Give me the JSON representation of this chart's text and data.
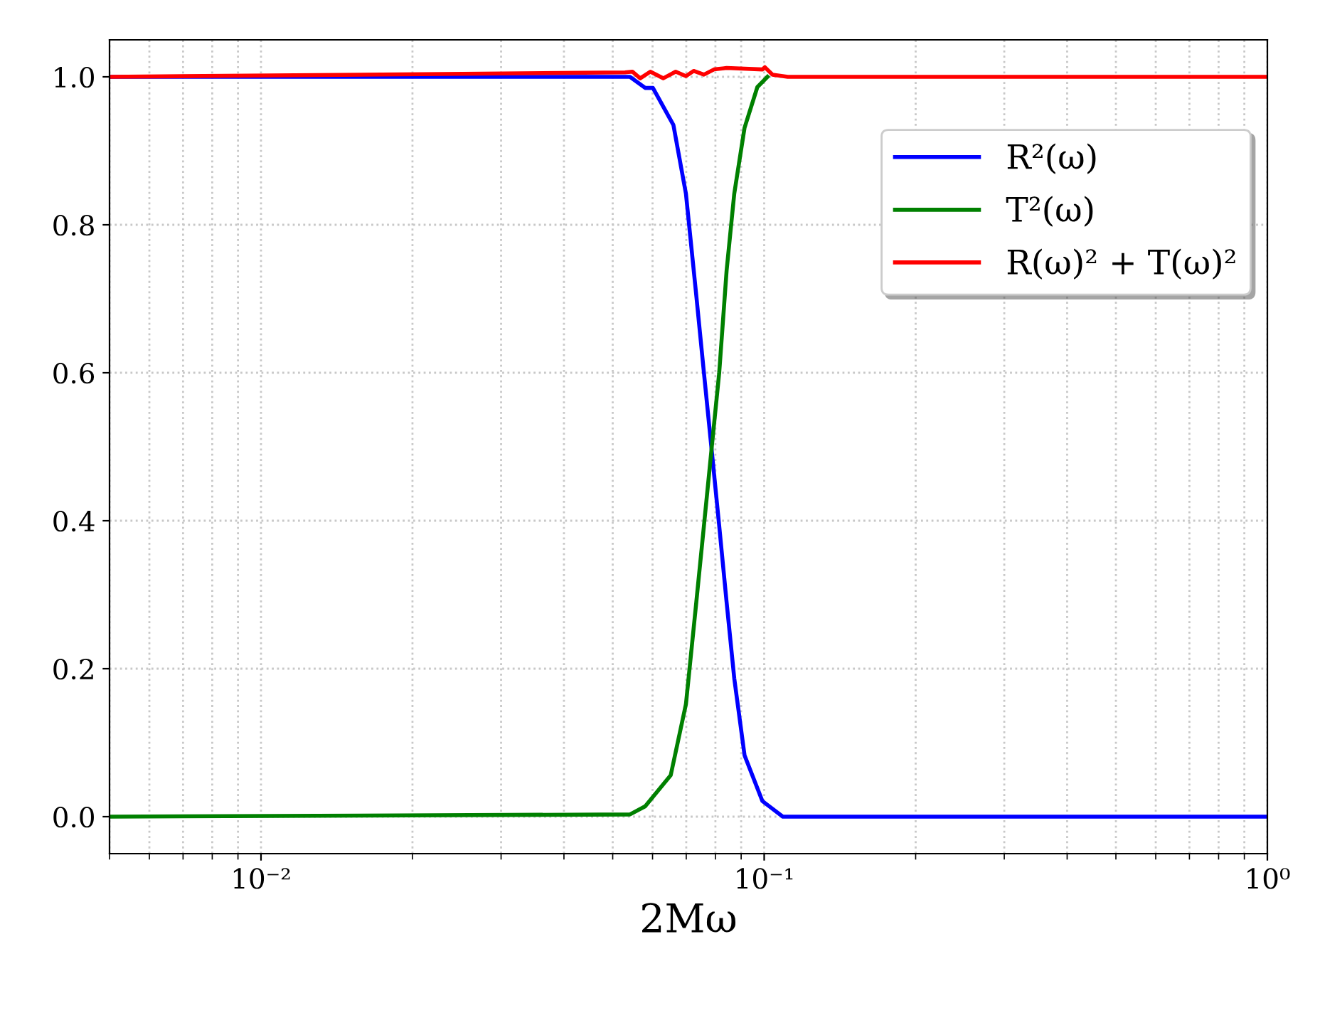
{
  "chart_data": {
    "type": "line",
    "xlabel": "2Mω",
    "log": "x",
    "grid": true,
    "legend": "top right",
    "xlim": [
      0.005,
      1
    ],
    "ylim": [
      -0.05,
      1.05
    ],
    "xticks": [
      {
        "value": 0.01,
        "label": "10⁻²"
      },
      {
        "value": 0.1,
        "label": "10⁻¹"
      },
      {
        "value": 1,
        "label": "10⁰"
      }
    ],
    "yticks": [
      {
        "value": 0,
        "label": "0.0"
      },
      {
        "value": 0.2,
        "label": "0.2"
      },
      {
        "value": 0.4,
        "label": "0.4"
      },
      {
        "value": 0.6,
        "label": "0.6"
      },
      {
        "value": 0.8,
        "label": "0.8"
      },
      {
        "value": 1,
        "label": "1.0"
      }
    ],
    "series": [
      {
        "name": "R²(ω)",
        "color": "#0000ff",
        "x": [
          0.005,
          0.0541,
          0.058,
          0.0601,
          0.066,
          0.0699,
          0.0733,
          0.0759,
          0.0786,
          0.0814,
          0.0842,
          0.0872,
          0.0914,
          0.0992,
          0.1089,
          1
        ],
        "values": [
          1.0,
          1.0,
          0.985,
          0.985,
          0.935,
          0.842,
          0.704,
          0.6,
          0.497,
          0.393,
          0.29,
          0.187,
          0.083,
          0.021,
          0.0,
          0.0
        ]
      },
      {
        "name": "T²(ω)",
        "color": "#008000",
        "x": [
          0.005,
          0.0541,
          0.058,
          0.0652,
          0.0699,
          0.0733,
          0.0759,
          0.0786,
          0.0814,
          0.0842,
          0.0872,
          0.0914,
          0.0969,
          0.1015
        ],
        "values": [
          0.0,
          0.003,
          0.014,
          0.056,
          0.152,
          0.29,
          0.393,
          0.497,
          0.6,
          0.738,
          0.842,
          0.931,
          0.986,
          1.0
        ]
      },
      {
        "name": "R(ω)² + T(ω)²",
        "color": "#ff0000",
        "x": [
          0.005,
          0.0529,
          0.0547,
          0.0567,
          0.0594,
          0.063,
          0.0667,
          0.0699,
          0.0724,
          0.0759,
          0.0795,
          0.0842,
          0.0992,
          0.1003,
          0.1039,
          0.1114,
          1
        ],
        "values": [
          1.0,
          1.006,
          1.007,
          0.998,
          1.007,
          0.998,
          1.007,
          1.001,
          1.008,
          1.003,
          1.01,
          1.012,
          1.01,
          1.013,
          1.003,
          1.0,
          1.0
        ]
      }
    ]
  }
}
